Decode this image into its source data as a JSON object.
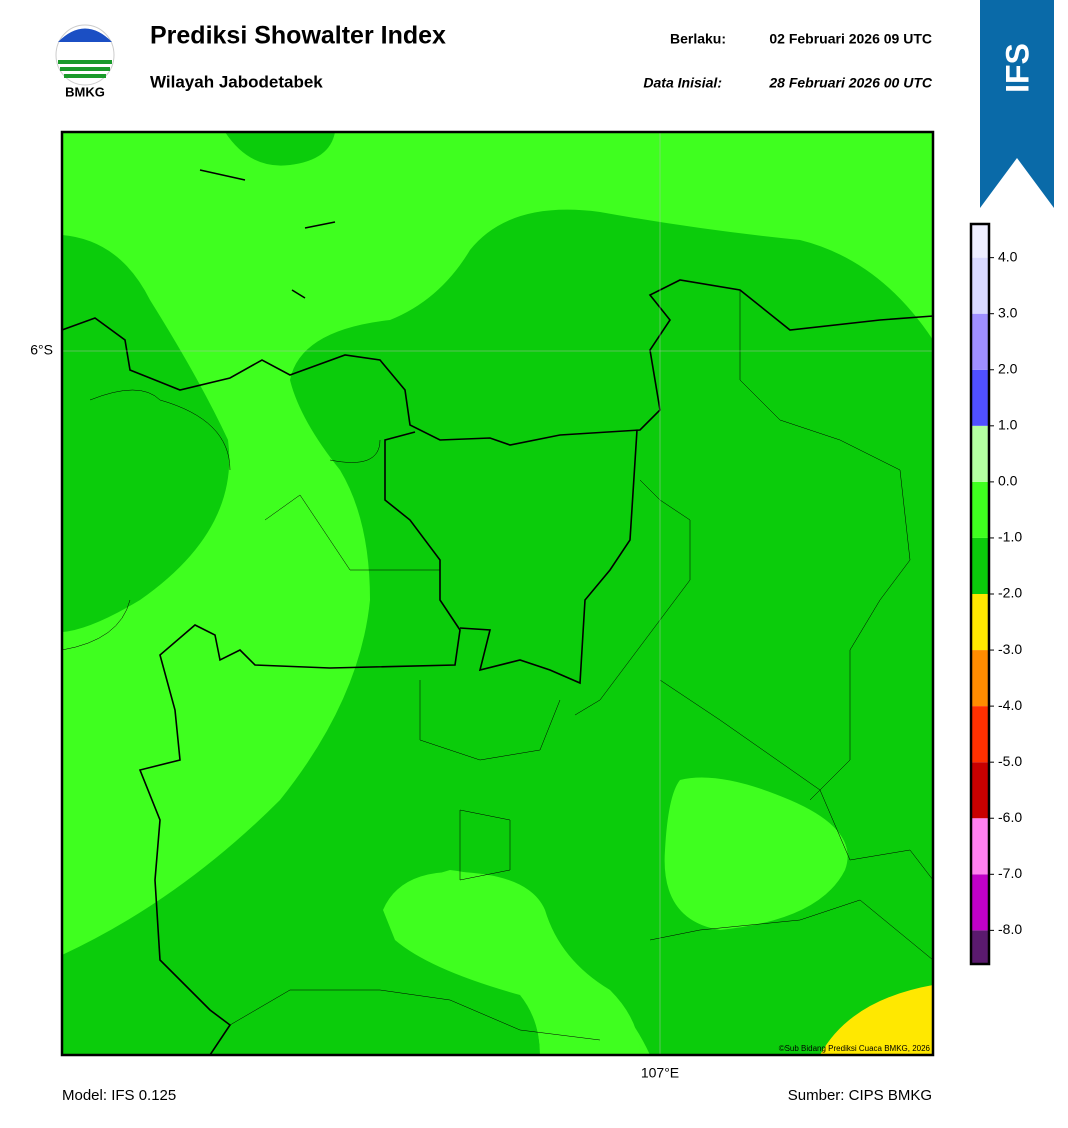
{
  "header": {
    "logo_text": "BMKG",
    "title": "Prediksi Showalter Index",
    "subtitle": "Wilayah Jabodetabek",
    "valid_label": "Berlaku:",
    "valid_time": "02 Februari 2026 09 UTC",
    "init_label": "Data Inisial:",
    "init_time": "28 Februari 2026 00 UTC",
    "badge": "IFS"
  },
  "map": {
    "lat_label": "6°S",
    "lon_label": "107°E",
    "copyright": "©Sub Bidang Prediksi Cuaca BMKG, 2026"
  },
  "colorbar": {
    "lim": [
      -8.6,
      4.6
    ],
    "levels": [
      -8,
      -7,
      -6,
      -5,
      -4,
      -3,
      -2,
      -1,
      0,
      1,
      2,
      3,
      4
    ],
    "colors": [
      "#5a1a6e",
      "#c000c8",
      "#ff80f0",
      "#c80000",
      "#ff3000",
      "#ff8c00",
      "#ffe800",
      "#0bcc0b",
      "#3fff1f",
      "#b3ffa0",
      "#5050ff",
      "#9f8fff",
      "#d8d8ff",
      "#eeeeff"
    ],
    "ticks": [
      {
        "value": -8,
        "label": "-8.0"
      },
      {
        "value": -7,
        "label": "-7.0"
      },
      {
        "value": -6,
        "label": "-6.0"
      },
      {
        "value": -5,
        "label": "-5.0"
      },
      {
        "value": -4,
        "label": "-4.0"
      },
      {
        "value": -3,
        "label": "-3.0"
      },
      {
        "value": -2,
        "label": "-2.0"
      },
      {
        "value": -1,
        "label": "-1.0"
      },
      {
        "value": 0,
        "label": "0.0"
      },
      {
        "value": 1,
        "label": "1.0"
      },
      {
        "value": 2,
        "label": "2.0"
      },
      {
        "value": 3,
        "label": "3.0"
      },
      {
        "value": 4,
        "label": "4.0"
      }
    ]
  },
  "footer": {
    "model": "Model: IFS 0.125",
    "source": "Sumber: CIPS BMKG"
  }
}
